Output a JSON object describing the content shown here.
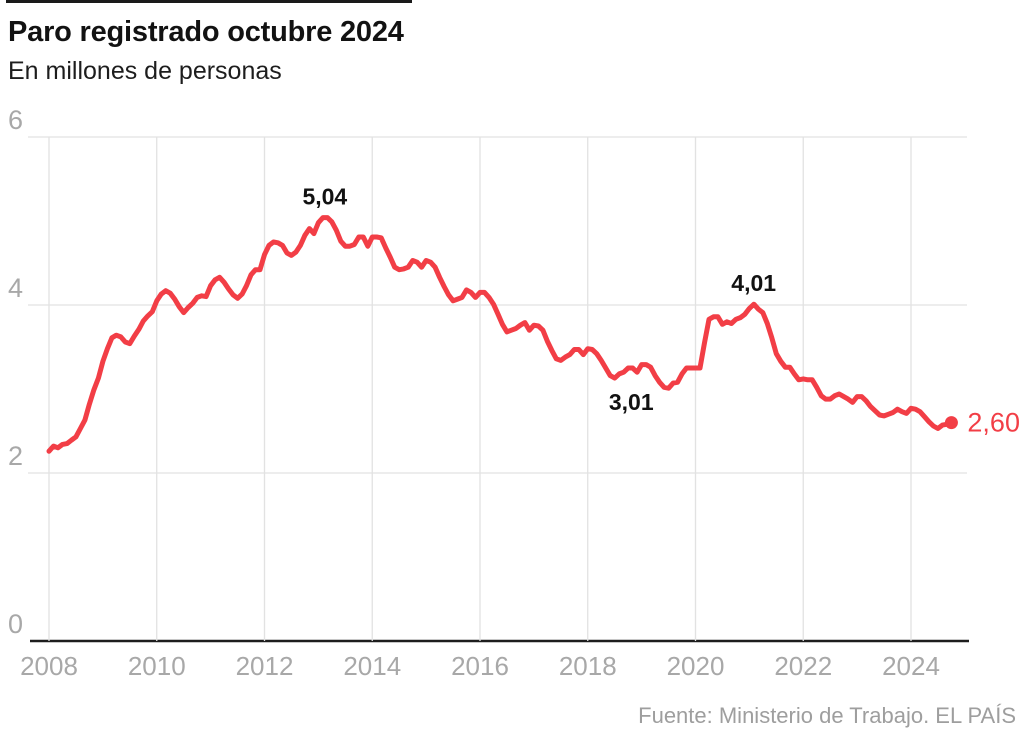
{
  "header": {
    "title": "Paro registrado octubre 2024",
    "subtitle": "En millones de personas"
  },
  "footer": {
    "source": "Fuente: Ministerio de Trabajo. EL PAÍS"
  },
  "colors": {
    "accent": "#f23e46",
    "grid": "#e2e2e2",
    "axis": "#1d1d1d",
    "tick_label": "#a8a8a8",
    "annotation": "#121212"
  },
  "chart_data": {
    "type": "line",
    "title": "Paro registrado octubre 2024",
    "ylabel": "En millones de personas",
    "x_start_year": 2008,
    "x_start_month": 1,
    "x_end_year": 2024,
    "x_end_month": 10,
    "xlim": [
      2008,
      2025.05
    ],
    "ylim": [
      0,
      6
    ],
    "grid": true,
    "x_ticks": [
      2008,
      2010,
      2012,
      2014,
      2016,
      2018,
      2020,
      2022,
      2024
    ],
    "x_tick_labels": [
      "2008",
      "2010",
      "2012",
      "2014",
      "2016",
      "2018",
      "2020",
      "2022",
      "2024"
    ],
    "y_ticks": [
      0,
      2,
      4,
      6
    ],
    "y_tick_labels": [
      "0",
      "2",
      "4",
      "6"
    ],
    "series": [
      {
        "name": "Paro registrado (millones de personas)",
        "frequency": "monthly",
        "values": [
          2.26,
          2.32,
          2.3,
          2.34,
          2.35,
          2.39,
          2.43,
          2.53,
          2.63,
          2.82,
          2.99,
          3.13,
          3.33,
          3.48,
          3.61,
          3.64,
          3.62,
          3.56,
          3.54,
          3.63,
          3.71,
          3.81,
          3.87,
          3.92,
          4.05,
          4.13,
          4.17,
          4.14,
          4.07,
          3.98,
          3.91,
          3.97,
          4.02,
          4.09,
          4.11,
          4.1,
          4.23,
          4.3,
          4.33,
          4.27,
          4.19,
          4.12,
          4.08,
          4.13,
          4.23,
          4.36,
          4.42,
          4.42,
          4.6,
          4.71,
          4.75,
          4.74,
          4.71,
          4.62,
          4.59,
          4.63,
          4.71,
          4.83,
          4.91,
          4.85,
          4.98,
          5.04,
          5.04,
          4.99,
          4.89,
          4.76,
          4.7,
          4.7,
          4.72,
          4.81,
          4.81,
          4.7,
          4.81,
          4.81,
          4.8,
          4.68,
          4.57,
          4.45,
          4.42,
          4.43,
          4.45,
          4.53,
          4.51,
          4.45,
          4.53,
          4.51,
          4.45,
          4.33,
          4.22,
          4.12,
          4.05,
          4.07,
          4.09,
          4.18,
          4.15,
          4.09,
          4.15,
          4.15,
          4.09,
          4.01,
          3.89,
          3.77,
          3.68,
          3.7,
          3.72,
          3.76,
          3.79,
          3.7,
          3.76,
          3.75,
          3.7,
          3.57,
          3.46,
          3.36,
          3.34,
          3.38,
          3.41,
          3.47,
          3.47,
          3.41,
          3.48,
          3.47,
          3.42,
          3.34,
          3.25,
          3.16,
          3.13,
          3.18,
          3.2,
          3.25,
          3.25,
          3.2,
          3.29,
          3.29,
          3.26,
          3.16,
          3.08,
          3.02,
          3.01,
          3.07,
          3.08,
          3.18,
          3.25,
          3.25,
          3.25,
          3.25,
          3.55,
          3.83,
          3.86,
          3.86,
          3.77,
          3.8,
          3.78,
          3.83,
          3.85,
          3.89,
          3.96,
          4.01,
          3.95,
          3.91,
          3.78,
          3.61,
          3.42,
          3.33,
          3.26,
          3.26,
          3.18,
          3.11,
          3.12,
          3.11,
          3.11,
          3.02,
          2.92,
          2.88,
          2.88,
          2.92,
          2.94,
          2.91,
          2.88,
          2.84,
          2.91,
          2.91,
          2.86,
          2.79,
          2.74,
          2.69,
          2.68,
          2.7,
          2.72,
          2.76,
          2.73,
          2.71,
          2.77,
          2.76,
          2.73,
          2.67,
          2.61,
          2.56,
          2.53,
          2.57,
          2.58,
          2.6
        ]
      }
    ],
    "annotations": [
      {
        "label": "5,04",
        "x": 2013.12,
        "y": 5.04,
        "placement": "above",
        "bold": true
      },
      {
        "label": "4,01",
        "x": 2021.08,
        "y": 4.01,
        "placement": "above",
        "bold": true
      },
      {
        "label": "3,01",
        "x": 2019.55,
        "y": 3.01,
        "placement": "below-left",
        "bold": true
      },
      {
        "label": "2,60",
        "x": 2024.75,
        "y": 2.6,
        "placement": "right",
        "bold": false,
        "accent": true
      }
    ],
    "end_dot": {
      "x": 2024.75,
      "y": 2.6
    },
    "legend_position": "none"
  }
}
